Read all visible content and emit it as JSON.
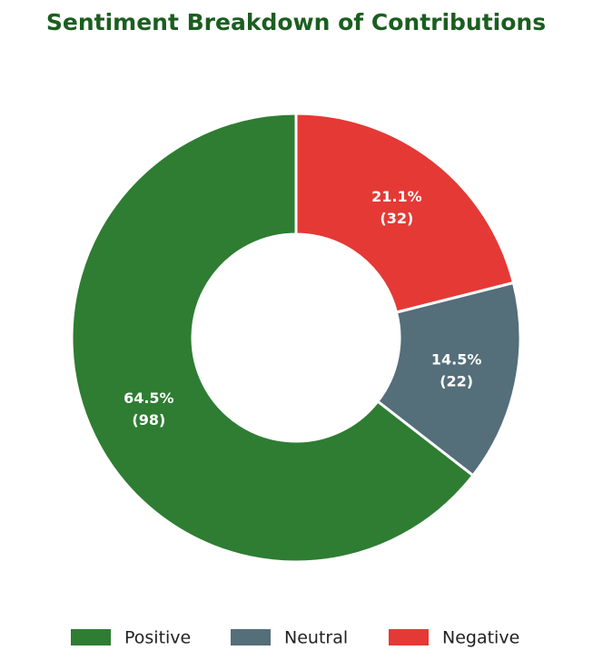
{
  "chart_data": {
    "type": "donut",
    "title": "Sentiment Breakdown of Contributions",
    "categories": [
      "Positive",
      "Neutral",
      "Negative"
    ],
    "values": [
      98,
      22,
      32
    ],
    "value_labels": [
      "(98)",
      "(22)",
      "(32)"
    ],
    "percent_labels": [
      "64.5%",
      "14.5%",
      "21.1%"
    ],
    "colors": [
      "#2e7d32",
      "#546e7a",
      "#e53935"
    ],
    "direction": "counterclockwise",
    "legend": "bottom"
  }
}
